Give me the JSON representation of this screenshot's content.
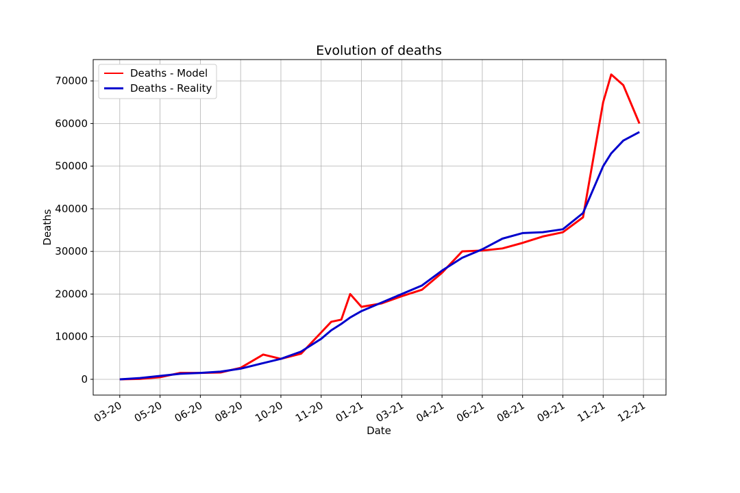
{
  "chart_data": {
    "type": "line",
    "title": "Evolution of deaths",
    "x_label": "Date",
    "y_label": "Deaths",
    "x": [
      0,
      0.5,
      1,
      1.5,
      2,
      2.5,
      3,
      3.56,
      4,
      4.5,
      5,
      5.25,
      5.5,
      5.72,
      6,
      6.5,
      7,
      7.5,
      8,
      8.5,
      9,
      9.5,
      10,
      10.5,
      11,
      11.5,
      12,
      12.2,
      12.5,
      12.9
    ],
    "series": [
      {
        "name": "Deaths - Model",
        "color": "#ff0000",
        "values": [
          0,
          100,
          500,
          1500,
          1500,
          1600,
          2700,
          5800,
          4800,
          6000,
          11000,
          13500,
          14000,
          20000,
          17000,
          17800,
          19500,
          21000,
          25000,
          30000,
          30200,
          30700,
          32000,
          33500,
          34500,
          38000,
          65000,
          71500,
          69000,
          60000
        ]
      },
      {
        "name": "Deaths - Reality",
        "color": "#0000cc",
        "values": [
          0,
          300,
          800,
          1300,
          1500,
          1800,
          2500,
          3800,
          4800,
          6500,
          9500,
          11500,
          13000,
          14500,
          16000,
          18000,
          20000,
          22000,
          25500,
          28500,
          30500,
          33000,
          34300,
          34500,
          35200,
          39000,
          50000,
          53000,
          56000,
          58000
        ]
      }
    ],
    "xlim": [
      -0.66,
      13.56
    ],
    "ylim": [
      -3700,
      75000
    ],
    "xticks": [
      {
        "value": 0,
        "label": "03-20"
      },
      {
        "value": 1,
        "label": "05-20"
      },
      {
        "value": 2,
        "label": "06-20"
      },
      {
        "value": 3,
        "label": "08-20"
      },
      {
        "value": 4,
        "label": "10-20"
      },
      {
        "value": 5,
        "label": "11-20"
      },
      {
        "value": 6,
        "label": "01-21"
      },
      {
        "value": 7,
        "label": "03-21"
      },
      {
        "value": 8,
        "label": "04-21"
      },
      {
        "value": 9,
        "label": "06-21"
      },
      {
        "value": 10,
        "label": "08-21"
      },
      {
        "value": 11,
        "label": "09-21"
      },
      {
        "value": 12,
        "label": "11-21"
      },
      {
        "value": 13,
        "label": "12-21"
      }
    ],
    "yticks": [
      0,
      10000,
      20000,
      30000,
      40000,
      50000,
      60000,
      70000
    ],
    "grid": true,
    "legend": "upper left"
  }
}
